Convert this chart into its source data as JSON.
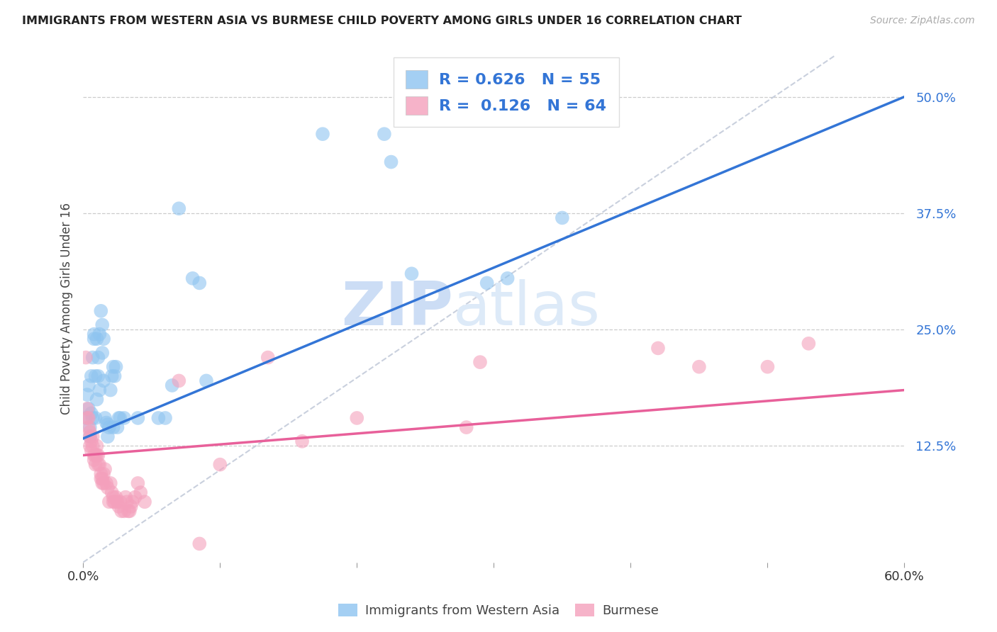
{
  "title": "IMMIGRANTS FROM WESTERN ASIA VS BURMESE CHILD POVERTY AMONG GIRLS UNDER 16 CORRELATION CHART",
  "source": "Source: ZipAtlas.com",
  "ylabel": "Child Poverty Among Girls Under 16",
  "ytick_vals": [
    0.125,
    0.25,
    0.375,
    0.5
  ],
  "ytick_labels": [
    "12.5%",
    "25.0%",
    "37.5%",
    "50.0%"
  ],
  "xlim": [
    0.0,
    0.6
  ],
  "ylim": [
    0.0,
    0.545
  ],
  "color_blue": "#8ec4f0",
  "color_pink": "#f4a0bc",
  "color_trendline_blue": "#3375d6",
  "color_trendline_pink": "#e8609a",
  "color_dashed": "#c0c8d8",
  "watermark_zip": "ZIP",
  "watermark_atlas": "atlas",
  "legend_label1": "Immigrants from Western Asia",
  "legend_label2": "Burmese",
  "legend_r1": "R = 0.626",
  "legend_n1": "N = 55",
  "legend_r2": "R =  0.126",
  "legend_n2": "N = 64",
  "blue_trendline": [
    [
      0.0,
      0.133
    ],
    [
      0.6,
      0.5
    ]
  ],
  "pink_trendline": [
    [
      0.0,
      0.115
    ],
    [
      0.6,
      0.185
    ]
  ],
  "dashed_line": [
    [
      0.0,
      0.0
    ],
    [
      0.55,
      0.545
    ]
  ],
  "blue_scatter": [
    [
      0.002,
      0.155
    ],
    [
      0.003,
      0.18
    ],
    [
      0.004,
      0.165
    ],
    [
      0.004,
      0.19
    ],
    [
      0.005,
      0.145
    ],
    [
      0.005,
      0.135
    ],
    [
      0.006,
      0.16
    ],
    [
      0.006,
      0.2
    ],
    [
      0.007,
      0.155
    ],
    [
      0.007,
      0.22
    ],
    [
      0.008,
      0.245
    ],
    [
      0.008,
      0.24
    ],
    [
      0.009,
      0.155
    ],
    [
      0.009,
      0.2
    ],
    [
      0.01,
      0.175
    ],
    [
      0.01,
      0.24
    ],
    [
      0.011,
      0.22
    ],
    [
      0.011,
      0.2
    ],
    [
      0.012,
      0.185
    ],
    [
      0.012,
      0.245
    ],
    [
      0.013,
      0.27
    ],
    [
      0.014,
      0.255
    ],
    [
      0.014,
      0.225
    ],
    [
      0.015,
      0.24
    ],
    [
      0.015,
      0.195
    ],
    [
      0.016,
      0.155
    ],
    [
      0.017,
      0.15
    ],
    [
      0.018,
      0.148
    ],
    [
      0.018,
      0.135
    ],
    [
      0.019,
      0.145
    ],
    [
      0.02,
      0.185
    ],
    [
      0.021,
      0.2
    ],
    [
      0.022,
      0.145
    ],
    [
      0.022,
      0.21
    ],
    [
      0.023,
      0.2
    ],
    [
      0.024,
      0.21
    ],
    [
      0.025,
      0.145
    ],
    [
      0.026,
      0.155
    ],
    [
      0.027,
      0.155
    ],
    [
      0.03,
      0.155
    ],
    [
      0.04,
      0.155
    ],
    [
      0.055,
      0.155
    ],
    [
      0.06,
      0.155
    ],
    [
      0.065,
      0.19
    ],
    [
      0.175,
      0.46
    ],
    [
      0.22,
      0.46
    ],
    [
      0.225,
      0.43
    ],
    [
      0.24,
      0.31
    ],
    [
      0.295,
      0.3
    ],
    [
      0.31,
      0.305
    ],
    [
      0.35,
      0.37
    ],
    [
      0.07,
      0.38
    ],
    [
      0.08,
      0.305
    ],
    [
      0.085,
      0.3
    ],
    [
      0.09,
      0.195
    ]
  ],
  "pink_scatter": [
    [
      0.002,
      0.22
    ],
    [
      0.003,
      0.165
    ],
    [
      0.003,
      0.155
    ],
    [
      0.004,
      0.145
    ],
    [
      0.004,
      0.155
    ],
    [
      0.005,
      0.135
    ],
    [
      0.005,
      0.14
    ],
    [
      0.005,
      0.125
    ],
    [
      0.006,
      0.13
    ],
    [
      0.006,
      0.12
    ],
    [
      0.007,
      0.135
    ],
    [
      0.007,
      0.125
    ],
    [
      0.008,
      0.115
    ],
    [
      0.008,
      0.11
    ],
    [
      0.009,
      0.115
    ],
    [
      0.009,
      0.105
    ],
    [
      0.01,
      0.115
    ],
    [
      0.01,
      0.125
    ],
    [
      0.011,
      0.115
    ],
    [
      0.011,
      0.105
    ],
    [
      0.012,
      0.105
    ],
    [
      0.013,
      0.095
    ],
    [
      0.013,
      0.09
    ],
    [
      0.014,
      0.09
    ],
    [
      0.014,
      0.085
    ],
    [
      0.015,
      0.085
    ],
    [
      0.015,
      0.095
    ],
    [
      0.016,
      0.1
    ],
    [
      0.017,
      0.085
    ],
    [
      0.018,
      0.08
    ],
    [
      0.019,
      0.065
    ],
    [
      0.02,
      0.085
    ],
    [
      0.021,
      0.075
    ],
    [
      0.022,
      0.07
    ],
    [
      0.022,
      0.065
    ],
    [
      0.023,
      0.065
    ],
    [
      0.024,
      0.07
    ],
    [
      0.025,
      0.065
    ],
    [
      0.026,
      0.06
    ],
    [
      0.027,
      0.065
    ],
    [
      0.028,
      0.055
    ],
    [
      0.03,
      0.055
    ],
    [
      0.031,
      0.07
    ],
    [
      0.032,
      0.065
    ],
    [
      0.033,
      0.055
    ],
    [
      0.034,
      0.055
    ],
    [
      0.035,
      0.06
    ],
    [
      0.036,
      0.065
    ],
    [
      0.038,
      0.07
    ],
    [
      0.04,
      0.085
    ],
    [
      0.042,
      0.075
    ],
    [
      0.045,
      0.065
    ],
    [
      0.085,
      0.02
    ],
    [
      0.1,
      0.105
    ],
    [
      0.16,
      0.13
    ],
    [
      0.2,
      0.155
    ],
    [
      0.28,
      0.145
    ],
    [
      0.29,
      0.215
    ],
    [
      0.42,
      0.23
    ],
    [
      0.45,
      0.21
    ],
    [
      0.5,
      0.21
    ],
    [
      0.53,
      0.235
    ],
    [
      0.07,
      0.195
    ],
    [
      0.135,
      0.22
    ]
  ]
}
